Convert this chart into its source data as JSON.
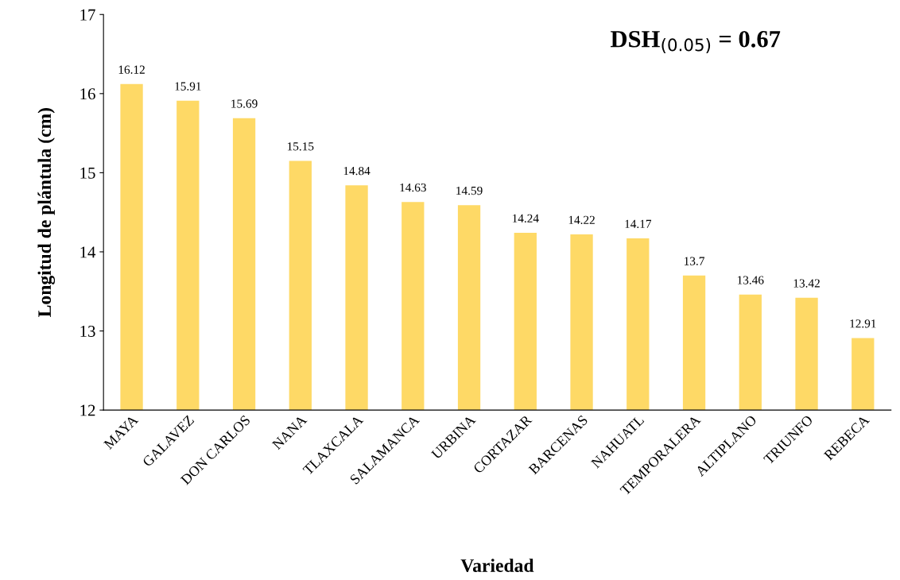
{
  "chart_data": {
    "type": "bar",
    "xlabel": "Variedad",
    "ylabel": "Longitud de plántula (cm)",
    "categories": [
      "MAYA",
      "GALAVEZ",
      "DON CARLOS",
      "NANA",
      "TLAXCALA",
      "SALAMANCA",
      "URBINA",
      "CORTAZAR",
      "BARCENAS",
      "NAHUATL",
      "TEMPORALERA",
      "ALTIPLANO",
      "TRIUNFO",
      "REBECA"
    ],
    "values": [
      16.12,
      15.91,
      15.69,
      15.15,
      14.84,
      14.63,
      14.59,
      14.24,
      14.22,
      14.17,
      13.7,
      13.46,
      13.42,
      12.91
    ],
    "color": "#fed966",
    "ylim": [
      12,
      17
    ],
    "yticks": [
      12,
      13,
      14,
      15,
      16,
      17
    ],
    "data_labels": true,
    "grid": false,
    "legend": false,
    "annotations": [
      "DSH$_{(0.05)}$ = 0.67"
    ]
  }
}
